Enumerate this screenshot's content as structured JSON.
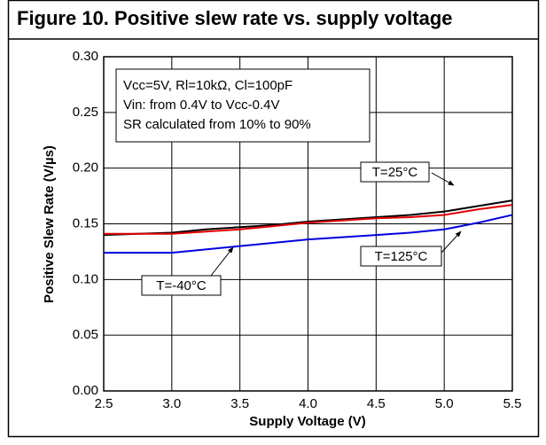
{
  "chart_data": {
    "type": "line",
    "title": "Figure 10. Positive slew rate vs. supply voltage",
    "xlabel": "Supply Voltage (V)",
    "ylabel": "Positive Slew Rate (V/µs)",
    "x": [
      2.5,
      2.75,
      3.0,
      3.25,
      3.5,
      3.75,
      4.0,
      4.25,
      4.5,
      4.75,
      5.0,
      5.25,
      5.5
    ],
    "series": [
      {
        "name": "T=25°C",
        "color": "#000000",
        "values": [
          0.14,
          0.141,
          0.142,
          0.145,
          0.147,
          0.149,
          0.152,
          0.154,
          0.156,
          0.158,
          0.161,
          0.166,
          0.171
        ]
      },
      {
        "name": "T=125°C",
        "color": "#e00000",
        "values": [
          0.141,
          0.141,
          0.141,
          0.143,
          0.145,
          0.148,
          0.151,
          0.153,
          0.155,
          0.156,
          0.158,
          0.163,
          0.167
        ]
      },
      {
        "name": "T=-40°C",
        "color": "#0000e0",
        "values": [
          0.124,
          0.124,
          0.124,
          0.127,
          0.13,
          0.133,
          0.136,
          0.138,
          0.14,
          0.142,
          0.145,
          0.151,
          0.158
        ]
      }
    ],
    "conditions": [
      "Vcc=5V, Rl=10kΩ, Cl=100pF",
      "Vin: from 0.4V to Vcc-0.4V",
      "SR calculated from 10% to 90%"
    ],
    "xlim": [
      2.5,
      5.5
    ],
    "xticks": [
      2.5,
      {
        "value": 3,
        "label": "3.0"
      },
      3.5,
      {
        "value": 4,
        "label": "4.0"
      },
      4.5,
      {
        "value": 5,
        "label": "5.0"
      },
      5.5
    ],
    "ylim": [
      0,
      0.3
    ],
    "yticks": [
      {
        "value": 0,
        "label": "0.00"
      },
      0.05,
      {
        "value": 0.1,
        "label": "0.10"
      },
      0.15,
      {
        "value": 0.2,
        "label": "0.20"
      },
      0.25,
      {
        "value": 0.3,
        "label": "0.30"
      }
    ],
    "grid": true
  }
}
